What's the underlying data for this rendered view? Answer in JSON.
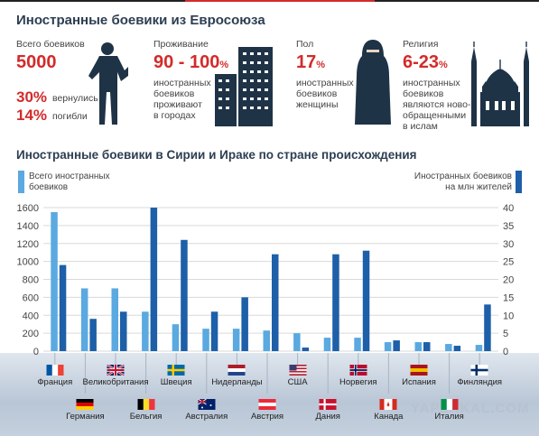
{
  "header": {
    "title": "Иностранные боевики из Евросоюза"
  },
  "stats": {
    "total_label": "Всего боевиков",
    "total_value": "5000",
    "returned_value": "30%",
    "returned_label": "вернулись",
    "killed_value": "14%",
    "killed_label": "погибли",
    "residence_label": "Проживание",
    "residence_value": "90 - 100",
    "residence_pct": "%",
    "residence_desc": [
      "иностранных",
      "боевиков",
      "проживают",
      "в городах"
    ],
    "sex_label": "Пол",
    "sex_value": "17",
    "sex_pct": "%",
    "sex_desc": [
      "иностранных",
      "боевиков",
      "женщины"
    ],
    "religion_label": "Религия",
    "religion_value": "6-23",
    "religion_pct": "%",
    "religion_desc": [
      "иностранных",
      "боевиков",
      "являются ново-",
      "обращенными",
      "в ислам"
    ]
  },
  "icons": [
    "fighter-silhouette-icon",
    "apartment-building-icon",
    "woman-in-niqab-icon",
    "mosque-icon",
    "country-flag-icon"
  ],
  "colors": {
    "light_bar": "#5aa9e0",
    "dark_bar": "#1d5fa8",
    "accent_red": "#d42a2a",
    "title": "#2c3e52"
  },
  "chart_data": {
    "type": "bar",
    "title": "Иностранные боевики в Сирии и Ираке по стране происхождения",
    "legend_left": [
      "Всего иностранных",
      "боевиков"
    ],
    "legend_right": [
      "Иностранных боевиков",
      "на млн жителей"
    ],
    "categories": [
      "Франция",
      "Германия",
      "Великобритания",
      "Бельгия",
      "Швеция",
      "Австралия",
      "Нидерланды",
      "Австрия",
      "США",
      "Дания",
      "Норвегия",
      "Канада",
      "Испания",
      "Италия",
      "Финляндия"
    ],
    "series": [
      {
        "name": "Всего иностранных боевиков",
        "axis": "left",
        "values": [
          1550,
          700,
          700,
          440,
          300,
          250,
          250,
          230,
          200,
          150,
          150,
          100,
          100,
          80,
          70
        ]
      },
      {
        "name": "Иностранных боевиков на млн жителей",
        "axis": "right",
        "values": [
          24,
          9,
          11,
          40,
          31,
          11,
          15,
          27,
          1,
          27,
          28,
          3,
          2.5,
          1.5,
          13
        ]
      }
    ],
    "ylim_left": [
      0,
      1600
    ],
    "yticks_left": [
      0,
      200,
      400,
      600,
      800,
      1000,
      1200,
      1400,
      1600
    ],
    "ylim_right": [
      0,
      40
    ],
    "yticks_right": [
      0,
      5,
      10,
      15,
      20,
      25,
      30,
      35,
      40
    ],
    "grid": true
  },
  "watermark": "YAPLAKAL.COM"
}
